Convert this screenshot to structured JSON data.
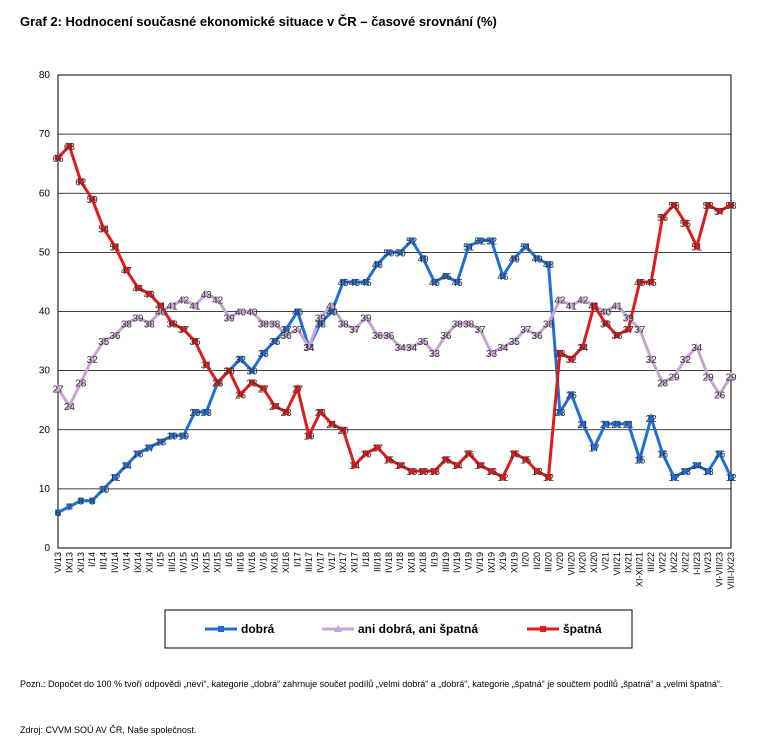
{
  "chart_data": {
    "type": "line",
    "title": "Graf 2: Hodnocení současné ekonomické situace v ČR – časové srovnání (%)",
    "note": "Pozn.: Dopočet do 100 % tvoří odpovědi „neví“, kategorie „dobrá“ zahrnuje součet podílů „velmi dobrá“ a „dobrá“, kategorie „špatná“ je součtem podílů „špatná“ a „velmi špatná“.",
    "source": "Zdroj: CVVM SOÚ AV ČR, Naše společnost.",
    "categories": [
      "VI/13",
      "IX/13",
      "XI/13",
      "I/14",
      "II/14",
      "IV/14",
      "V/14",
      "IX/14",
      "XI/14",
      "I/15",
      "III/15",
      "IV/15",
      "V/15",
      "IX/15",
      "XI/15",
      "I/16",
      "III/16",
      "IV/16",
      "V/16",
      "IX/16",
      "XI/16",
      "I/17",
      "III/17",
      "IV/17",
      "V/17",
      "IX/17",
      "XI/17",
      "I/18",
      "III/18",
      "IV/18",
      "V/18",
      "IX/18",
      "XI/18",
      "I/19",
      "III/19",
      "IV/19",
      "V/19",
      "VI/19",
      "IX/19",
      "X/19",
      "XI/19",
      "I/20",
      "II/20",
      "III/20",
      "V/20",
      "VII/20",
      "IX/20",
      "XI/20",
      "V/21",
      "VII/21",
      "IX/21",
      "XI-XII/21",
      "III/22",
      "VI/22",
      "IX/22",
      "XI/22",
      "I-II/23",
      "IV/23",
      "VI-VII/23",
      "VIII-IX/23"
    ],
    "series": [
      {
        "name": "dobrá",
        "color": "#1f6fd6",
        "marker": "square",
        "values": [
          6,
          7,
          8,
          8,
          10,
          12,
          14,
          16,
          17,
          18,
          19,
          19,
          23,
          23,
          28,
          30,
          32,
          30,
          33,
          35,
          37,
          40,
          34,
          38,
          40,
          45,
          45,
          45,
          48,
          50,
          50,
          52,
          49,
          45,
          46,
          45,
          51,
          52,
          52,
          46,
          49,
          51,
          49,
          48,
          23,
          26,
          21,
          17,
          21,
          21,
          21,
          15,
          22,
          16,
          12,
          13,
          14,
          13,
          16,
          12
        ]
      },
      {
        "name": "ani dobrá, ani špatná",
        "color": "#c9a3d4",
        "marker": "triangle",
        "values": [
          27,
          24,
          28,
          32,
          35,
          36,
          38,
          39,
          38,
          40,
          41,
          42,
          41,
          43,
          42,
          39,
          40,
          40,
          38,
          38,
          36,
          37,
          34,
          39,
          41,
          38,
          37,
          39,
          36,
          36,
          34,
          34,
          35,
          33,
          36,
          38,
          38,
          37,
          33,
          34,
          35,
          37,
          36,
          38,
          42,
          41,
          42,
          41,
          40,
          41,
          39,
          37,
          32,
          28,
          29,
          32,
          34,
          29,
          26,
          29
        ]
      },
      {
        "name": "špatná",
        "color": "#e01b1b",
        "marker": "square",
        "values": [
          66,
          68,
          62,
          59,
          54,
          51,
          47,
          44,
          43,
          41,
          38,
          37,
          35,
          31,
          28,
          30,
          26,
          28,
          27,
          24,
          23,
          27,
          19,
          23,
          21,
          20,
          14,
          16,
          17,
          15,
          14,
          13,
          13,
          13,
          15,
          14,
          16,
          14,
          13,
          12,
          16,
          15,
          13,
          12,
          33,
          32,
          34,
          41,
          38,
          36,
          37,
          45,
          45,
          56,
          58,
          55,
          51,
          58,
          57,
          58
        ]
      }
    ],
    "ylim": [
      0,
      80
    ],
    "yticks": [
      0,
      10,
      20,
      30,
      40,
      50,
      60,
      70,
      80
    ],
    "grid": true
  }
}
